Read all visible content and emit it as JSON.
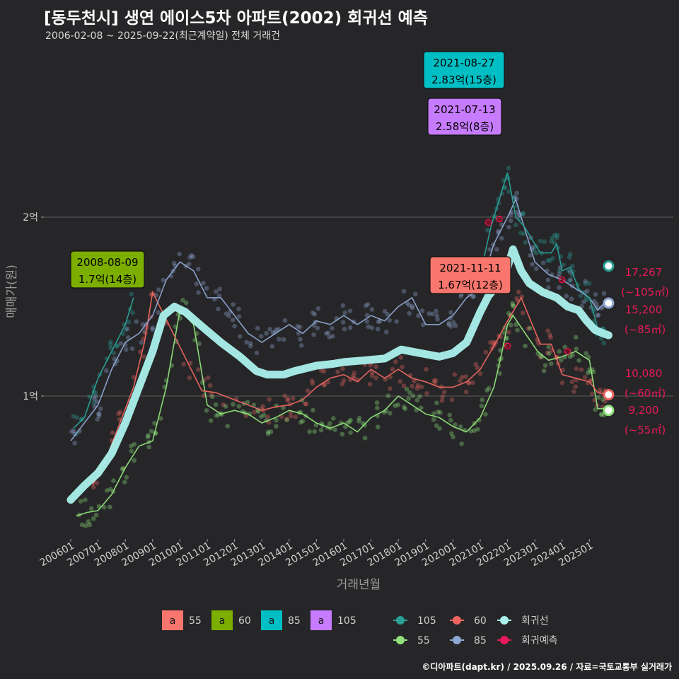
{
  "title": "[동두천시] 생연 에이스5차 아파트(2002) 회귀선 예측",
  "subtitle": "2006-02-08 ~ 2025-09-22(최근계약일) 전체 거래건",
  "caption": "©디아파트(dapt.kr) / 2025.09.26 / 자료=국토교통부 실거래가",
  "colors": {
    "background": "#262628",
    "s55": "#90e27a",
    "s60": "#ee6660",
    "s85": "#8ea6d2",
    "s105": "#2aa198",
    "regression": "#aaf0ec",
    "prediction": "#e8195a",
    "box55": "#f8766d",
    "box60": "#7cae00",
    "box85": "#00bfc4",
    "box105": "#c77cff"
  },
  "chart_data": {
    "type": "line",
    "xlabel": "거래년월",
    "ylabel": "매매가(원)",
    "x_ticks": [
      "200601",
      "200701",
      "200801",
      "200901",
      "201001",
      "201101",
      "201201",
      "201301",
      "201401",
      "201501",
      "201601",
      "201701",
      "201801",
      "201901",
      "202001",
      "202101",
      "202201",
      "202301",
      "202401",
      "202501"
    ],
    "y_ticks": [
      {
        "value": 1,
        "label": "1억"
      },
      {
        "value": 2,
        "label": "2억"
      }
    ],
    "units": "억원",
    "xlim": [
      2005.6,
      2026.3
    ],
    "ylim": [
      0.2,
      2.8
    ],
    "series": [
      {
        "name": "회귀선",
        "color": "#aaf0ec",
        "x": [
          2006.0,
          2006.5,
          2007.0,
          2007.5,
          2008.0,
          2008.5,
          2009.0,
          2009.4,
          2009.8,
          2010.2,
          2010.8,
          2011.5,
          2012.2,
          2012.8,
          2013.2,
          2013.8,
          2014.2,
          2015.0,
          2015.6,
          2016.0,
          2016.8,
          2017.5,
          2018.1,
          2018.8,
          2019.5,
          2020.0,
          2020.5,
          2021.0,
          2021.3,
          2021.7,
          2022.0,
          2022.2,
          2022.5,
          2022.8,
          2023.3,
          2023.8,
          2024.2,
          2024.6,
          2024.9,
          2025.2,
          2025.5,
          2025.7
        ],
        "y": [
          0.42,
          0.5,
          0.57,
          0.68,
          0.85,
          1.05,
          1.25,
          1.45,
          1.5,
          1.47,
          1.39,
          1.3,
          1.22,
          1.14,
          1.12,
          1.12,
          1.14,
          1.17,
          1.18,
          1.19,
          1.2,
          1.21,
          1.26,
          1.24,
          1.22,
          1.24,
          1.3,
          1.47,
          1.56,
          1.63,
          1.72,
          1.82,
          1.7,
          1.63,
          1.58,
          1.55,
          1.5,
          1.48,
          1.42,
          1.37,
          1.35,
          1.34
        ]
      },
      {
        "name": "105",
        "color": "#2aa198",
        "x": [
          2006.1,
          2006.5,
          2007.0,
          2007.5,
          2008.0,
          2008.3,
          2021.0,
          2021.4,
          2021.7,
          2022.0,
          2022.3,
          2022.6,
          2023.2,
          2023.6,
          2023.8,
          2024.0,
          2024.3,
          2024.6,
          2025.0,
          2025.3,
          2025.6
        ],
        "y": [
          0.82,
          0.88,
          1.1,
          1.25,
          1.4,
          1.55,
          1.68,
          1.95,
          2.1,
          2.25,
          2.0,
          1.95,
          1.8,
          1.8,
          1.85,
          1.7,
          1.72,
          1.6,
          1.55,
          1.38,
          1.37
        ]
      },
      {
        "name": "85",
        "color": "#8ea6d2",
        "x": [
          2006.0,
          2006.5,
          2007.0,
          2007.5,
          2008.0,
          2008.5,
          2009.0,
          2009.5,
          2010.0,
          2010.5,
          2011.0,
          2011.5,
          2012.0,
          2012.5,
          2013.0,
          2013.5,
          2014.0,
          2014.5,
          2015.0,
          2015.5,
          2016.0,
          2016.5,
          2017.0,
          2017.5,
          2018.0,
          2018.5,
          2019.0,
          2019.5,
          2020.0,
          2020.5,
          2021.0,
          2021.5,
          2022.0,
          2022.3,
          2022.7,
          2023.0,
          2023.5,
          2024.0,
          2024.5,
          2025.0,
          2025.3,
          2025.6
        ],
        "y": [
          0.75,
          0.85,
          0.95,
          1.15,
          1.3,
          1.35,
          1.45,
          1.65,
          1.75,
          1.7,
          1.55,
          1.55,
          1.45,
          1.35,
          1.3,
          1.35,
          1.4,
          1.35,
          1.42,
          1.4,
          1.45,
          1.4,
          1.45,
          1.42,
          1.5,
          1.55,
          1.4,
          1.4,
          1.45,
          1.55,
          1.6,
          1.85,
          2.0,
          2.1,
          1.9,
          1.75,
          1.68,
          1.65,
          1.6,
          1.55,
          1.48,
          1.53
        ]
      },
      {
        "name": "60",
        "color": "#ee6660",
        "x": [
          2006.8,
          2007.3,
          2007.8,
          2008.3,
          2008.7,
          2009.0,
          2010.8,
          2011.3,
          2013.0,
          2013.5,
          2014.0,
          2014.5,
          2015.0,
          2015.5,
          2016.0,
          2016.5,
          2017.0,
          2017.5,
          2018.0,
          2018.5,
          2019.0,
          2019.5,
          2020.0,
          2020.5,
          2021.0,
          2021.5,
          2022.0,
          2022.5,
          2023.2,
          2023.6,
          2024.0,
          2024.5,
          2025.0,
          2025.3,
          2025.6
        ],
        "y": [
          0.5,
          0.65,
          0.85,
          1.05,
          1.3,
          1.58,
          1.03,
          1.02,
          0.92,
          0.94,
          0.95,
          0.98,
          1.05,
          1.1,
          1.12,
          1.08,
          1.15,
          1.1,
          1.15,
          1.1,
          1.08,
          1.05,
          1.05,
          1.08,
          1.15,
          1.28,
          1.42,
          1.55,
          1.29,
          1.29,
          1.12,
          1.1,
          1.08,
          1.02,
          1.01
        ]
      },
      {
        "name": "55",
        "color": "#90e27a",
        "x": [
          2006.2,
          2006.6,
          2007.0,
          2007.5,
          2008.0,
          2008.5,
          2009.0,
          2009.5,
          2010.0,
          2010.5,
          2011.0,
          2011.5,
          2012.0,
          2012.5,
          2013.0,
          2013.5,
          2014.0,
          2014.5,
          2015.0,
          2015.5,
          2016.0,
          2016.5,
          2017.0,
          2017.5,
          2018.0,
          2018.5,
          2019.0,
          2019.5,
          2020.0,
          2020.5,
          2021.0,
          2021.5,
          2021.8,
          2022.0,
          2022.2,
          2023.1,
          2023.5,
          2024.0,
          2024.5,
          2025.0,
          2025.3,
          2025.6
        ],
        "y": [
          0.33,
          0.35,
          0.36,
          0.45,
          0.6,
          0.72,
          0.75,
          1.05,
          1.48,
          1.4,
          0.95,
          0.9,
          0.92,
          0.9,
          0.85,
          0.88,
          0.92,
          0.9,
          0.85,
          0.82,
          0.85,
          0.8,
          0.88,
          0.92,
          1.0,
          0.95,
          0.9,
          0.88,
          0.83,
          0.8,
          0.88,
          1.05,
          1.25,
          1.4,
          1.45,
          1.25,
          1.2,
          1.22,
          1.25,
          1.2,
          0.93,
          0.93
        ]
      },
      {
        "name": "회귀예측",
        "color": "#e8195a",
        "x": [],
        "y": []
      }
    ],
    "callouts": [
      {
        "date": "2008-08-09",
        "price": "1.7억(14층)",
        "x": 2008.6,
        "y": 1.7,
        "area": "60"
      },
      {
        "date": "2021-11-11",
        "price": "1.67억(12층)",
        "x": 2021.86,
        "y": 1.67,
        "area": "55"
      },
      {
        "date": "2021-07-13",
        "price": "2.58억(8층)",
        "x": 2021.53,
        "y": 2.58,
        "area": "105"
      },
      {
        "date": "2021-08-27",
        "price": "2.83억(15층)",
        "x": 2021.65,
        "y": 2.83,
        "area": "85"
      }
    ],
    "end_labels": [
      {
        "series": "105",
        "value": "17,267",
        "area": "(~105㎡)",
        "y": 1.7267
      },
      {
        "series": "85",
        "value": "15,200",
        "area": "(~85㎡)",
        "y": 1.52
      },
      {
        "series": "60",
        "value": "10,080",
        "area": "(~60㎡)",
        "y": 1.008
      },
      {
        "series": "55",
        "value": "9,200",
        "area": "(~55㎡)",
        "y": 0.92
      }
    ],
    "legend": {
      "boxes": [
        {
          "letter": "a",
          "label": "55",
          "color": "#f8766d"
        },
        {
          "letter": "a",
          "label": "60",
          "color": "#7cae00"
        },
        {
          "letter": "a",
          "label": "85",
          "color": "#00bfc4"
        },
        {
          "letter": "a",
          "label": "105",
          "color": "#c77cff"
        }
      ],
      "lines": [
        {
          "label": "105",
          "color": "#2aa198"
        },
        {
          "label": "60",
          "color": "#ee6660"
        },
        {
          "label": "회귀선",
          "color": "#aaf0ec"
        },
        {
          "label": "55",
          "color": "#90e27a"
        },
        {
          "label": "85",
          "color": "#8ea6d2"
        },
        {
          "label": "회귀예측",
          "color": "#e8195a"
        }
      ]
    }
  }
}
